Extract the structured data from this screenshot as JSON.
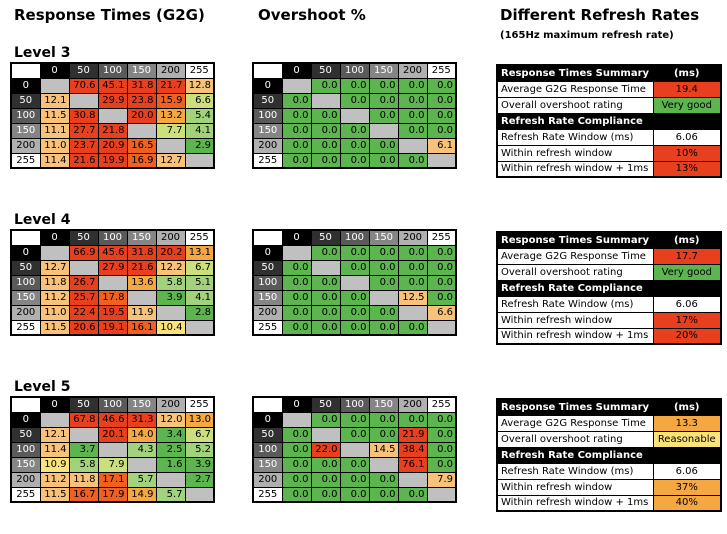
{
  "headers": {
    "response_times": "Response Times (G2G)",
    "overshoot": "Overshoot %",
    "refresh": "Different Refresh Rates",
    "refresh_sub": "(165Hz maximum refresh rate)"
  },
  "colors": {
    "gray": "#c0c0c0",
    "green": "#5cb54e",
    "red": "#e8401f",
    "orange_red": "#f06020",
    "orange": "#f5a742",
    "light_orange": "#f8c27a",
    "yellow": "#fbe37c",
    "yellow_green": "#cbe07c",
    "light_green": "#a3d27c",
    "white": "#ffffff"
  },
  "matrix_headers": [
    "0",
    "50",
    "100",
    "150",
    "200",
    "255"
  ],
  "chart_data": [
    {
      "type": "table",
      "title": "Level 3",
      "response": [
        [
          "",
          "70.6",
          "45.1",
          "31.8",
          "21.7",
          "12.8"
        ],
        [
          "12.1",
          "",
          "29.9",
          "23.8",
          "15.9",
          "6.6"
        ],
        [
          "11.5",
          "30.8",
          "",
          "20.0",
          "13.2",
          "5.4"
        ],
        [
          "11.1",
          "27.7",
          "21.8",
          "",
          "7.7",
          "4.1"
        ],
        [
          "11.0",
          "23.7",
          "20.9",
          "16.5",
          "",
          "2.9"
        ],
        [
          "11.4",
          "21.6",
          "19.9",
          "16.9",
          "12.7",
          ""
        ]
      ],
      "overshoot": [
        [
          "",
          "0.0",
          "0.0",
          "0.0",
          "0.0",
          "0.0"
        ],
        [
          "0.0",
          "",
          "0.0",
          "0.0",
          "0.0",
          "0.0"
        ],
        [
          "0.0",
          "0.0",
          "",
          "0.0",
          "0.0",
          "0.0"
        ],
        [
          "0.0",
          "0.0",
          "0.0",
          "",
          "0.0",
          "0.0"
        ],
        [
          "0.0",
          "0.0",
          "0.0",
          "0.0",
          "",
          "6.1"
        ],
        [
          "0.0",
          "0.0",
          "0.0",
          "0.0",
          "0.0",
          ""
        ]
      ],
      "summary": {
        "title": "Response Times Summary",
        "unit": "(ms)",
        "avg_label": "Average G2G Response Time",
        "avg_value": "19.4",
        "overshoot_label": "Overall overshoot rating",
        "overshoot_value": "Very good",
        "compliance_title": "Refresh Rate Compliance",
        "window_label": "Refresh Rate Window (ms)",
        "window_value": "6.06",
        "within_label": "Within refresh window",
        "within_value": "10%",
        "within1_label": "Within refresh window + 1ms",
        "within1_value": "13%"
      }
    },
    {
      "type": "table",
      "title": "Level 4",
      "response": [
        [
          "",
          "66.9",
          "45.6",
          "31.8",
          "20.2",
          "13.1"
        ],
        [
          "12.7",
          "",
          "27.9",
          "21.6",
          "12.2",
          "6.7"
        ],
        [
          "11.8",
          "26.7",
          "",
          "13.6",
          "5.8",
          "5.1"
        ],
        [
          "11.2",
          "25.7",
          "17.8",
          "",
          "3.9",
          "4.1"
        ],
        [
          "11.0",
          "22.4",
          "19.5",
          "11.9",
          "",
          "2.8"
        ],
        [
          "11.5",
          "20.6",
          "19.1",
          "16.1",
          "10.4",
          ""
        ]
      ],
      "overshoot": [
        [
          "",
          "0.0",
          "0.0",
          "0.0",
          "0.0",
          "0.0"
        ],
        [
          "0.0",
          "",
          "0.0",
          "0.0",
          "0.0",
          "0.0"
        ],
        [
          "0.0",
          "0.0",
          "",
          "0.0",
          "0.0",
          "0.0"
        ],
        [
          "0.0",
          "0.0",
          "0.0",
          "",
          "12.5",
          "0.0"
        ],
        [
          "0.0",
          "0.0",
          "0.0",
          "0.0",
          "",
          "6.6"
        ],
        [
          "0.0",
          "0.0",
          "0.0",
          "0.0",
          "0.0",
          ""
        ]
      ],
      "summary": {
        "title": "Response Times Summary",
        "unit": "(ms)",
        "avg_label": "Average G2G Response Time",
        "avg_value": "17.7",
        "overshoot_label": "Overall overshoot rating",
        "overshoot_value": "Very good",
        "compliance_title": "Refresh Rate Compliance",
        "window_label": "Refresh Rate Window (ms)",
        "window_value": "6.06",
        "within_label": "Within refresh window",
        "within_value": "17%",
        "within1_label": "Within refresh window + 1ms",
        "within1_value": "20%"
      }
    },
    {
      "type": "table",
      "title": "Level 5",
      "response": [
        [
          "",
          "67.8",
          "46.6",
          "31.3",
          "12.0",
          "13.0"
        ],
        [
          "12.1",
          "",
          "20.1",
          "14.0",
          "3.4",
          "6.7"
        ],
        [
          "11.4",
          "3.7",
          "",
          "4.3",
          "2.5",
          "5.2"
        ],
        [
          "10.9",
          "5.8",
          "7.9",
          "",
          "1.6",
          "3.9"
        ],
        [
          "11.2",
          "11.8",
          "17.1",
          "5.7",
          "",
          "2.7"
        ],
        [
          "11.5",
          "16.7",
          "17.9",
          "14.9",
          "5.7",
          ""
        ]
      ],
      "overshoot": [
        [
          "",
          "0.0",
          "0.0",
          "0.0",
          "0.0",
          "0.0"
        ],
        [
          "0.0",
          "",
          "0.0",
          "0.0",
          "21.9",
          "0.0"
        ],
        [
          "0.0",
          "22.0",
          "",
          "14.5",
          "38.4",
          "0.0"
        ],
        [
          "0.0",
          "0.0",
          "0.0",
          "",
          "76.1",
          "0.0"
        ],
        [
          "0.0",
          "0.0",
          "0.0",
          "0.0",
          "",
          "7.9"
        ],
        [
          "0.0",
          "0.0",
          "0.0",
          "0.0",
          "0.0",
          ""
        ]
      ],
      "summary": {
        "title": "Response Times Summary",
        "unit": "(ms)",
        "avg_label": "Average G2G Response Time",
        "avg_value": "13.3",
        "overshoot_label": "Overall overshoot rating",
        "overshoot_value": "Reasonable",
        "compliance_title": "Refresh Rate Compliance",
        "window_label": "Refresh Rate Window (ms)",
        "window_value": "6.06",
        "within_label": "Within refresh window",
        "within_value": "37%",
        "within1_label": "Within refresh window + 1ms",
        "within1_value": "40%"
      }
    }
  ]
}
